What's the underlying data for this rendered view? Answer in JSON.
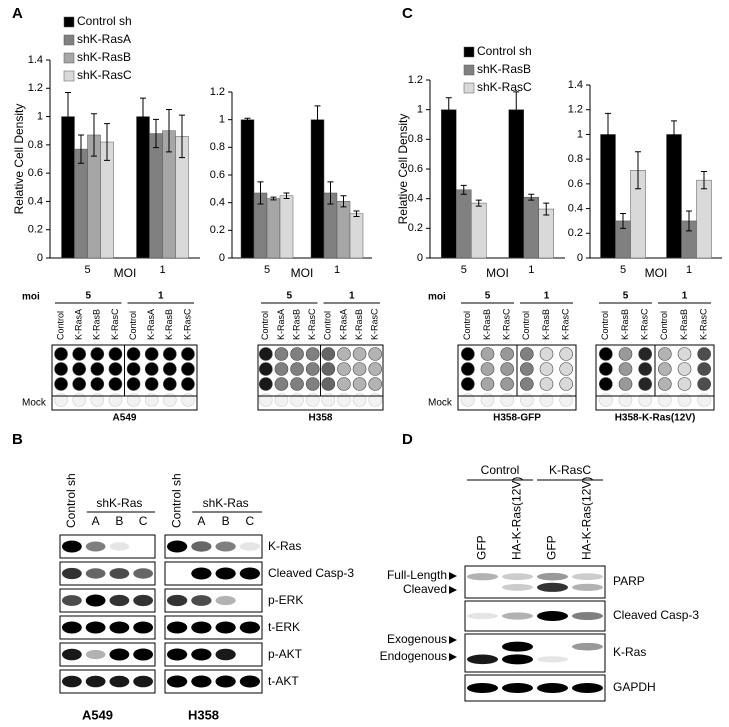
{
  "panel_labels": [
    "A",
    "B",
    "C",
    "D"
  ],
  "chart_data": [
    {
      "type": "bar",
      "ylabel": "Relative Cell Density",
      "xlabel": "MOI",
      "categories": [
        "5",
        "1"
      ],
      "ylim": [
        0,
        1.4
      ],
      "yticks": [
        0,
        0.2,
        0.4,
        0.6,
        0.8,
        1,
        1.2,
        1.4
      ],
      "series": [
        {
          "name": "Control sh",
          "color": "#000000",
          "values": [
            1,
            1
          ],
          "errors": [
            0.17,
            0.13
          ]
        },
        {
          "name": "shK-RasA",
          "color": "#808080",
          "values": [
            0.77,
            0.88
          ],
          "errors": [
            0.1,
            0.1
          ]
        },
        {
          "name": "shK-RasB",
          "color": "#a6a6a6",
          "values": [
            0.87,
            0.9
          ],
          "errors": [
            0.15,
            0.15
          ]
        },
        {
          "name": "shK-RasC",
          "color": "#d9d9d9",
          "values": [
            0.82,
            0.86
          ],
          "errors": [
            0.13,
            0.15
          ]
        }
      ]
    },
    {
      "type": "bar",
      "xlabel": "MOI",
      "categories": [
        "5",
        "1"
      ],
      "ylim": [
        0,
        1.2
      ],
      "yticks": [
        0,
        0.2,
        0.4,
        0.6,
        0.8,
        1,
        1.2
      ],
      "series": [
        {
          "color": "#000000",
          "values": [
            1,
            1
          ],
          "errors": [
            0.01,
            0.1
          ]
        },
        {
          "color": "#808080",
          "values": [
            0.47,
            0.47
          ],
          "errors": [
            0.08,
            0.08
          ]
        },
        {
          "color": "#a6a6a6",
          "values": [
            0.43,
            0.41
          ],
          "errors": [
            0.01,
            0.04
          ]
        },
        {
          "color": "#d9d9d9",
          "values": [
            0.45,
            0.32
          ],
          "errors": [
            0.02,
            0.02
          ]
        }
      ]
    },
    {
      "type": "bar",
      "ylabel": "Relative Cell Density",
      "xlabel": "MOI",
      "categories": [
        "5",
        "1"
      ],
      "ylim": [
        0,
        1.2
      ],
      "yticks": [
        0,
        0.2,
        0.4,
        0.6,
        0.8,
        1,
        1.2
      ],
      "series": [
        {
          "name": "Control sh",
          "color": "#000000",
          "values": [
            1,
            1
          ],
          "errors": [
            0.08,
            0.12
          ]
        },
        {
          "name": "shK-RasB",
          "color": "#808080",
          "values": [
            0.46,
            0.41
          ],
          "errors": [
            0.03,
            0.02
          ]
        },
        {
          "name": "shK-RasC",
          "color": "#d9d9d9",
          "values": [
            0.37,
            0.33
          ],
          "errors": [
            0.02,
            0.04
          ]
        }
      ]
    },
    {
      "type": "bar",
      "xlabel": "MOI",
      "categories": [
        "5",
        "1"
      ],
      "ylim": [
        0,
        1.4
      ],
      "yticks": [
        0,
        0.2,
        0.4,
        0.6,
        0.8,
        1,
        1.2,
        1.4
      ],
      "series": [
        {
          "color": "#000000",
          "values": [
            1,
            1
          ],
          "errors": [
            0.17,
            0.11
          ]
        },
        {
          "color": "#808080",
          "values": [
            0.3,
            0.3
          ],
          "errors": [
            0.06,
            0.08
          ]
        },
        {
          "color": "#d9d9d9",
          "values": [
            0.71,
            0.63
          ],
          "errors": [
            0.15,
            0.07
          ]
        }
      ]
    }
  ],
  "plates": [
    {
      "moi_label": "moi",
      "groups": [
        "5",
        "1"
      ],
      "lanes": [
        "Control",
        "K-RasA",
        "K-RasB",
        "K-RasC",
        "Control",
        "K-RasA",
        "K-RasB",
        "K-RasC"
      ],
      "mock": "Mock",
      "cell_line": "A549"
    },
    {
      "groups": [
        "5",
        "1"
      ],
      "lanes": [
        "Control",
        "K-RasA",
        "K-RasB",
        "K-RasC",
        "Control",
        "K-RasA",
        "K-RasB",
        "K-RasC"
      ],
      "cell_line": "H358"
    },
    {
      "moi_label": "moi",
      "groups": [
        "5",
        "1"
      ],
      "lanes": [
        "Control",
        "K-RasB",
        "K-RasC",
        "Control",
        "K-RasB",
        "K-RasC"
      ],
      "mock": "Mock",
      "cell_line": "H358-GFP"
    },
    {
      "groups": [
        "5",
        "1"
      ],
      "lanes": [
        "Control",
        "K-RasB",
        "K-RasC",
        "Control",
        "K-RasB",
        "K-RasC"
      ],
      "cell_line": "H358-K-Ras(12V)"
    }
  ],
  "blot_b": {
    "blocks": [
      {
        "control": "Control sh",
        "group": "shK-Ras",
        "lanes": [
          "A",
          "B",
          "C"
        ],
        "cell_line": "A549"
      },
      {
        "control": "Control sh",
        "group": "shK-Ras",
        "lanes": [
          "A",
          "B",
          "C"
        ],
        "cell_line": "H358"
      }
    ],
    "rows": [
      "K-Ras",
      "Cleaved Casp-3",
      "p-ERK",
      "t-ERK",
      "p-AKT",
      "t-AKT"
    ]
  },
  "blot_d": {
    "groups": [
      "Control",
      "K-RasC"
    ],
    "lanes": [
      "GFP",
      "HA-K-Ras(12V)",
      "GFP",
      "HA-K-Ras(12V)"
    ],
    "rows": [
      "PARP",
      "Cleaved Casp-3",
      "K-Ras",
      "GAPDH"
    ],
    "markers": [
      "Full-Length",
      "Cleaved",
      "Exogenous",
      "Endogenous"
    ]
  }
}
